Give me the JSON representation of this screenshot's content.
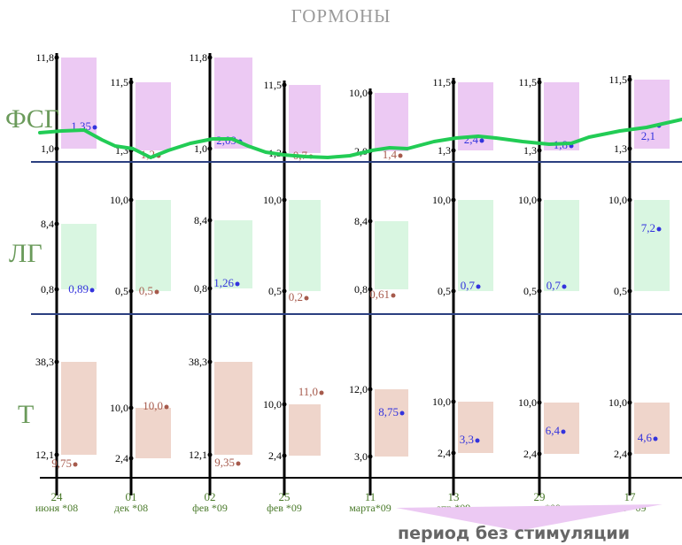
{
  "chart_data": {
    "type": "range-bar",
    "title": "ГОРМОНЫ",
    "annotation": "период без стимуляции",
    "grid": false,
    "colors": {
      "fsh_band": "#ecc9f3",
      "lh_band": "#d9f6e1",
      "t_band": "#efd5cb",
      "in_range_value": "#3333dd",
      "out_of_range_value": "#a65a4c",
      "trend_line": "#22cc55",
      "separator": "#2b3f80",
      "row_label": "#6a9a5a",
      "date_label": "#4a7a2a",
      "title": "#999999"
    },
    "dates": [
      {
        "day": "24",
        "month": "июня *08"
      },
      {
        "day": "01",
        "month": "дек *08"
      },
      {
        "day": "02",
        "month": "фев *09"
      },
      {
        "day": "25",
        "month": "фев *09"
      },
      {
        "day": "11",
        "month": "марта*09"
      },
      {
        "day": "13",
        "month": "апр *09"
      },
      {
        "day": "29",
        "month": "июня *09"
      },
      {
        "day": "17",
        "month": "авг *09"
      }
    ],
    "rows": [
      {
        "label": "ФСГ",
        "band_color_key": "fsh_band",
        "ranges": [
          [
            "1,0",
            "11,8"
          ],
          [
            "1,3",
            "11,5"
          ],
          [
            "1,0",
            "11,8"
          ],
          [
            "1,3",
            "11,5"
          ],
          [
            "2,0",
            "10,0"
          ],
          [
            "1,3",
            "11,5"
          ],
          [
            "1,3",
            "11,5"
          ],
          [
            "1,3",
            "11,5"
          ]
        ],
        "values": [
          "1,35",
          "1,2",
          "2,09",
          "0,7",
          "1,4",
          "2,4",
          "1,8",
          "2,1"
        ],
        "in_range": [
          true,
          false,
          true,
          false,
          false,
          true,
          true,
          true
        ]
      },
      {
        "label": "ЛГ",
        "band_color_key": "lh_band",
        "ranges": [
          [
            "0,8",
            "8,4"
          ],
          [
            "0,5",
            "10,0"
          ],
          [
            "0,8",
            "8,4"
          ],
          [
            "0,5",
            "10,0"
          ],
          [
            "0,8",
            "8,4"
          ],
          [
            "0,5",
            "10,0"
          ],
          [
            "0,5",
            "10,0"
          ],
          [
            "0,5",
            "10,0"
          ]
        ],
        "values": [
          "0,89",
          "0,5",
          "1,26",
          "0,2",
          "0,61",
          "0,7",
          "0,7",
          "7,2"
        ],
        "in_range": [
          true,
          false,
          true,
          false,
          false,
          true,
          true,
          true
        ]
      },
      {
        "label": "Т",
        "band_color_key": "t_band",
        "ranges": [
          [
            "12,1",
            "38,3"
          ],
          [
            "2,4",
            "10,0"
          ],
          [
            "12,1",
            "38,3"
          ],
          [
            "2,4",
            "10,0"
          ],
          [
            "3,0",
            "12,0"
          ],
          [
            "2,4",
            "10,0"
          ],
          [
            "2,4",
            "10,0"
          ],
          [
            "2,4",
            "10,0"
          ]
        ],
        "values": [
          "9,75",
          "10,0",
          "9,35",
          "11,0",
          "8,75",
          "3,3",
          "6,4",
          "4,6"
        ],
        "in_range": [
          false,
          false,
          false,
          false,
          true,
          true,
          true,
          true
        ]
      }
    ]
  }
}
